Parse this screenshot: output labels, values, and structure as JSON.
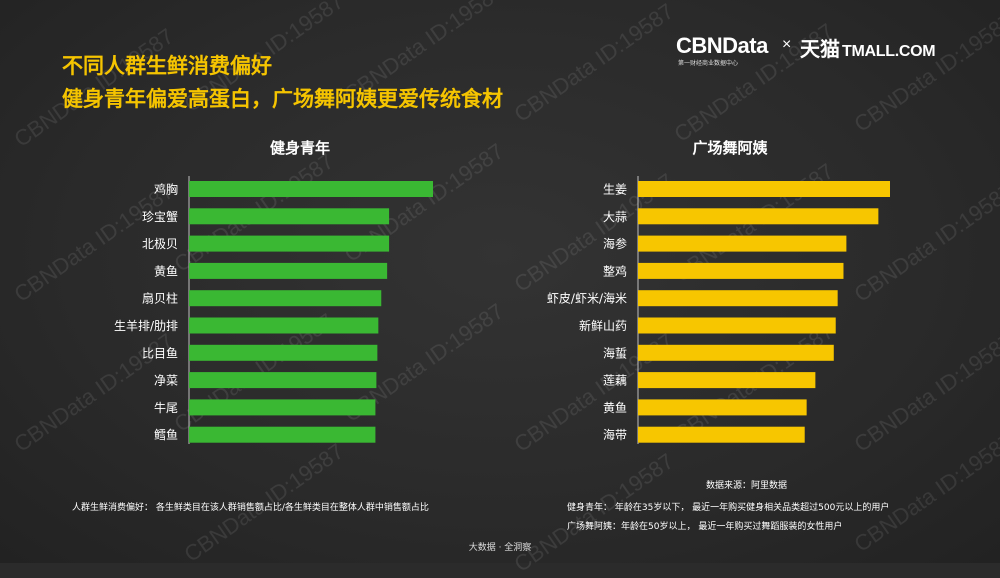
{
  "header": {
    "title_line1": "不同人群生鲜消费偏好",
    "title_line2": "健身青年偏爱高蛋白，广场舞阿姨更爱传统食材"
  },
  "logo": {
    "cbn": "CBNData",
    "cbn_sub": "第一财经商业数据中心",
    "times": "×",
    "tmall_cn": "天猫",
    "tmall_en": "TMALL.COM"
  },
  "watermark": "CBNData ID:19587",
  "colors": {
    "green": "#3ab833",
    "yellow": "#f7c600",
    "title": "#f5c400",
    "background": "#2b2b2b"
  },
  "chart_data": [
    {
      "type": "bar",
      "orientation": "horizontal",
      "title": "健身青年",
      "categories": [
        "鸡胸",
        "珍宝蟹",
        "北极贝",
        "黄鱼",
        "扇贝柱",
        "生羊排/肋排",
        "比目鱼",
        "净菜",
        "牛尾",
        "鳕鱼"
      ],
      "values": [
        2.5,
        2.05,
        2.05,
        2.03,
        1.97,
        1.94,
        1.93,
        1.92,
        1.91,
        1.91
      ],
      "xlim": [
        0,
        2.6
      ],
      "axis_ticks_visible": false,
      "color": "#3ab833"
    },
    {
      "type": "bar",
      "orientation": "horizontal",
      "title": "广场舞阿姨",
      "categories": [
        "生姜",
        "大蒜",
        "海参",
        "整鸡",
        "虾皮/虾米/海米",
        "新鲜山药",
        "海蜇",
        "莲藕",
        "黄鱼",
        "海带"
      ],
      "values": [
        2.6,
        2.48,
        2.15,
        2.12,
        2.06,
        2.04,
        2.02,
        1.83,
        1.74,
        1.72
      ],
      "xlim": [
        0,
        2.6
      ],
      "axis_ticks_visible": false,
      "color": "#f7c600"
    }
  ],
  "notes": {
    "source": "数据来源：阿里数据",
    "left": "人群生鲜消费偏好：  各生鲜类目在该人群销售额占比/各生鲜类目在整体人群中销售额占比",
    "right1": "健身青年：  年龄在35岁以下，  最近一年购买健身相关品类超过500元以上的用户",
    "right2": "广场舞阿姨：年龄在50岁以上，  最近一年购买过舞蹈服装的女性用户"
  },
  "footer": "大数据 · 全洞察"
}
